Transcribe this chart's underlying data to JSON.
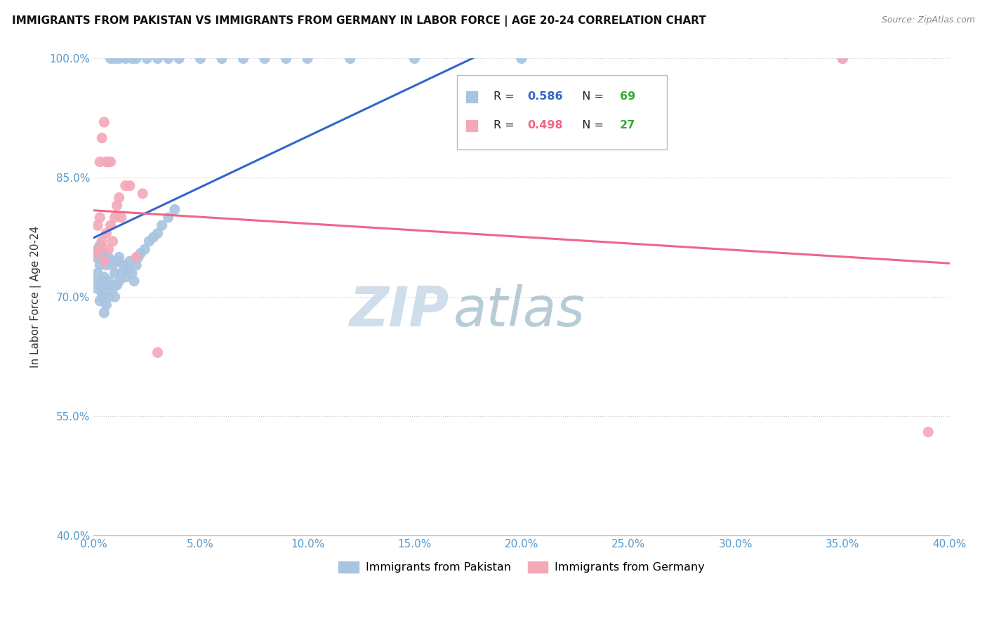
{
  "title": "IMMIGRANTS FROM PAKISTAN VS IMMIGRANTS FROM GERMANY IN LABOR FORCE | AGE 20-24 CORRELATION CHART",
  "source": "Source: ZipAtlas.com",
  "ylabel": "In Labor Force | Age 20-24",
  "xlim": [
    0.0,
    0.4
  ],
  "ylim": [
    0.4,
    1.0
  ],
  "xticks": [
    0.0,
    0.05,
    0.1,
    0.15,
    0.2,
    0.25,
    0.3,
    0.35,
    0.4
  ],
  "yticks": [
    0.4,
    0.55,
    0.7,
    0.85,
    1.0
  ],
  "xtick_labels": [
    "0.0%",
    "5.0%",
    "10.0%",
    "15.0%",
    "20.0%",
    "25.0%",
    "30.0%",
    "35.0%",
    "40.0%"
  ],
  "ytick_labels": [
    "40.0%",
    "55.0%",
    "70.0%",
    "85.0%",
    "100.0%"
  ],
  "blue_color": "#A8C4E0",
  "pink_color": "#F4A8B8",
  "blue_line_color": "#3366CC",
  "pink_line_color": "#EE6688",
  "legend_label_blue": "Immigrants from Pakistan",
  "legend_label_pink": "Immigrants from Germany",
  "watermark_zip": "ZIP",
  "watermark_atlas": "atlas",
  "blue_scatter_x": [
    0.001,
    0.001,
    0.002,
    0.002,
    0.002,
    0.003,
    0.003,
    0.003,
    0.003,
    0.004,
    0.004,
    0.004,
    0.005,
    0.005,
    0.005,
    0.005,
    0.006,
    0.006,
    0.006,
    0.007,
    0.007,
    0.007,
    0.008,
    0.008,
    0.009,
    0.009,
    0.01,
    0.01,
    0.011,
    0.011,
    0.012,
    0.012,
    0.013,
    0.014,
    0.015,
    0.016,
    0.017,
    0.018,
    0.019,
    0.02,
    0.021,
    0.022,
    0.024,
    0.026,
    0.028,
    0.03,
    0.032,
    0.035,
    0.038,
    0.008,
    0.01,
    0.012,
    0.015,
    0.018,
    0.02,
    0.025,
    0.03,
    0.035,
    0.04,
    0.05,
    0.06,
    0.07,
    0.08,
    0.09,
    0.1,
    0.12,
    0.15,
    0.2,
    0.35
  ],
  "blue_scatter_y": [
    0.72,
    0.75,
    0.71,
    0.73,
    0.76,
    0.695,
    0.715,
    0.74,
    0.765,
    0.7,
    0.72,
    0.75,
    0.68,
    0.705,
    0.725,
    0.755,
    0.69,
    0.715,
    0.74,
    0.7,
    0.72,
    0.75,
    0.715,
    0.745,
    0.71,
    0.74,
    0.7,
    0.73,
    0.715,
    0.745,
    0.72,
    0.75,
    0.73,
    0.74,
    0.725,
    0.735,
    0.745,
    0.73,
    0.72,
    0.74,
    0.75,
    0.755,
    0.76,
    0.77,
    0.775,
    0.78,
    0.79,
    0.8,
    0.81,
    1.0,
    1.0,
    1.0,
    1.0,
    1.0,
    1.0,
    1.0,
    1.0,
    1.0,
    1.0,
    1.0,
    1.0,
    1.0,
    1.0,
    1.0,
    1.0,
    1.0,
    1.0,
    1.0,
    1.0
  ],
  "pink_scatter_x": [
    0.001,
    0.002,
    0.003,
    0.003,
    0.004,
    0.005,
    0.006,
    0.007,
    0.008,
    0.009,
    0.01,
    0.011,
    0.012,
    0.013,
    0.015,
    0.017,
    0.02,
    0.023,
    0.03,
    0.003,
    0.004,
    0.005,
    0.006,
    0.007,
    0.008,
    0.35,
    0.39
  ],
  "pink_scatter_y": [
    0.755,
    0.79,
    0.76,
    0.8,
    0.77,
    0.745,
    0.78,
    0.76,
    0.79,
    0.77,
    0.8,
    0.815,
    0.825,
    0.8,
    0.84,
    0.84,
    0.75,
    0.83,
    0.63,
    0.87,
    0.9,
    0.92,
    0.87,
    0.87,
    0.87,
    1.0,
    0.53
  ]
}
